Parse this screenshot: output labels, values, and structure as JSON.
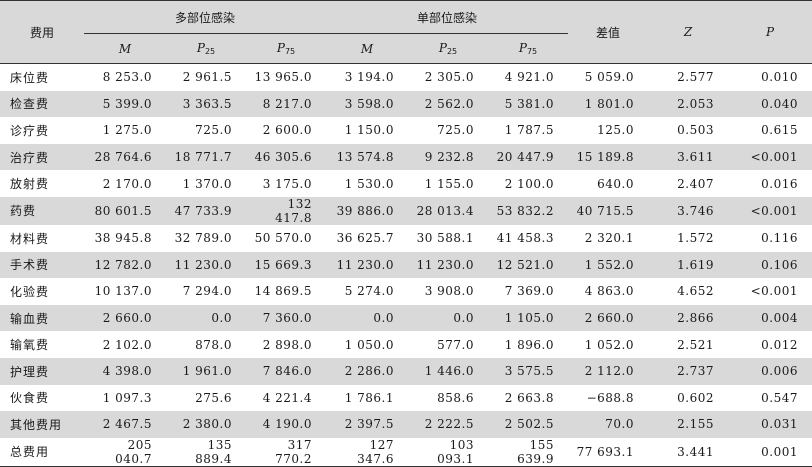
{
  "header": {
    "cost_label": "费用",
    "group_multi": "多部位感染",
    "group_single": "单部位感染",
    "diff_label": "差值",
    "z_label": "Z",
    "p_label": "P",
    "m_label": "M",
    "p_base": "P",
    "p25_sub": "25",
    "p75_sub": "75"
  },
  "rows": [
    {
      "label": "床位费",
      "m1": "8 253.0",
      "p25a": "2 961.5",
      "p75a": "13 965.0",
      "m2": "3 194.0",
      "p25b": "2 305.0",
      "p75b": "4 921.0",
      "diff": "5 059.0",
      "z": "2.577",
      "p": "0.010"
    },
    {
      "label": "检查费",
      "m1": "5 399.0",
      "p25a": "3 363.5",
      "p75a": "8 217.0",
      "m2": "3 598.0",
      "p25b": "2 562.0",
      "p75b": "5 381.0",
      "diff": "1 801.0",
      "z": "2.053",
      "p": "0.040"
    },
    {
      "label": "诊疗费",
      "m1": "1 275.0",
      "p25a": "725.0",
      "p75a": "2 600.0",
      "m2": "1 150.0",
      "p25b": "725.0",
      "p75b": "1 787.5",
      "diff": "125.0",
      "z": "0.503",
      "p": "0.615"
    },
    {
      "label": "治疗费",
      "m1": "28 764.6",
      "p25a": "18 771.7",
      "p75a": "46 305.6",
      "m2": "13 574.8",
      "p25b": "9 232.8",
      "p75b": "20 447.9",
      "diff": "15 189.8",
      "z": "3.611",
      "p": "<0.001"
    },
    {
      "label": "放射费",
      "m1": "2 170.0",
      "p25a": "1 370.0",
      "p75a": "3 175.0",
      "m2": "1 530.0",
      "p25b": "1 155.0",
      "p75b": "2 100.0",
      "diff": "640.0",
      "z": "2.407",
      "p": "0.016"
    },
    {
      "label": "药费",
      "m1": "80 601.5",
      "p25a": "47 733.9",
      "p75a": "132 417.8",
      "m2": "39 886.0",
      "p25b": "28 013.4",
      "p75b": "53 832.2",
      "diff": "40 715.5",
      "z": "3.746",
      "p": "<0.001"
    },
    {
      "label": "材料费",
      "m1": "38 945.8",
      "p25a": "32 789.0",
      "p75a": "50 570.0",
      "m2": "36 625.7",
      "p25b": "30 588.1",
      "p75b": "41 458.3",
      "diff": "2 320.1",
      "z": "1.572",
      "p": "0.116"
    },
    {
      "label": "手术费",
      "m1": "12 782.0",
      "p25a": "11 230.0",
      "p75a": "15 669.3",
      "m2": "11 230.0",
      "p25b": "11 230.0",
      "p75b": "12 521.0",
      "diff": "1 552.0",
      "z": "1.619",
      "p": "0.106"
    },
    {
      "label": "化验费",
      "m1": "10 137.0",
      "p25a": "7 294.0",
      "p75a": "14 869.5",
      "m2": "5 274.0",
      "p25b": "3 908.0",
      "p75b": "7 369.0",
      "diff": "4 863.0",
      "z": "4.652",
      "p": "<0.001"
    },
    {
      "label": "输血费",
      "m1": "2 660.0",
      "p25a": "0.0",
      "p75a": "7 360.0",
      "m2": "0.0",
      "p25b": "0.0",
      "p75b": "1 105.0",
      "diff": "2 660.0",
      "z": "2.866",
      "p": "0.004"
    },
    {
      "label": "输氧费",
      "m1": "2 102.0",
      "p25a": "878.0",
      "p75a": "2 898.0",
      "m2": "1 050.0",
      "p25b": "577.0",
      "p75b": "1 896.0",
      "diff": "1 052.0",
      "z": "2.521",
      "p": "0.012"
    },
    {
      "label": "护理费",
      "m1": "4 398.0",
      "p25a": "1 961.0",
      "p75a": "7 846.0",
      "m2": "2 286.0",
      "p25b": "1 446.0",
      "p75b": "3 575.5",
      "diff": "2 112.0",
      "z": "2.737",
      "p": "0.006"
    },
    {
      "label": "伙食费",
      "m1": "1 097.3",
      "p25a": "275.6",
      "p75a": "4 221.4",
      "m2": "1 786.1",
      "p25b": "858.6",
      "p75b": "2 663.8",
      "diff": "−688.8",
      "z": "0.602",
      "p": "0.547"
    },
    {
      "label": "其他费用",
      "m1": "2 467.5",
      "p25a": "2 380.0",
      "p75a": "4 190.0",
      "m2": "2 397.5",
      "p25b": "2 222.5",
      "p75b": "2 502.5",
      "diff": "70.0",
      "z": "2.155",
      "p": "0.031"
    },
    {
      "label": "总费用",
      "m1": "205 040.7",
      "p25a": "135 889.4",
      "p75a": "317 770.2",
      "m2": "127 347.6",
      "p25b": "103 093.1",
      "p75b": "155 639.9",
      "diff": "77 693.1",
      "z": "3.441",
      "p": "0.001"
    }
  ],
  "colors": {
    "shade": "#d9d9d9",
    "rule": "#333333"
  }
}
